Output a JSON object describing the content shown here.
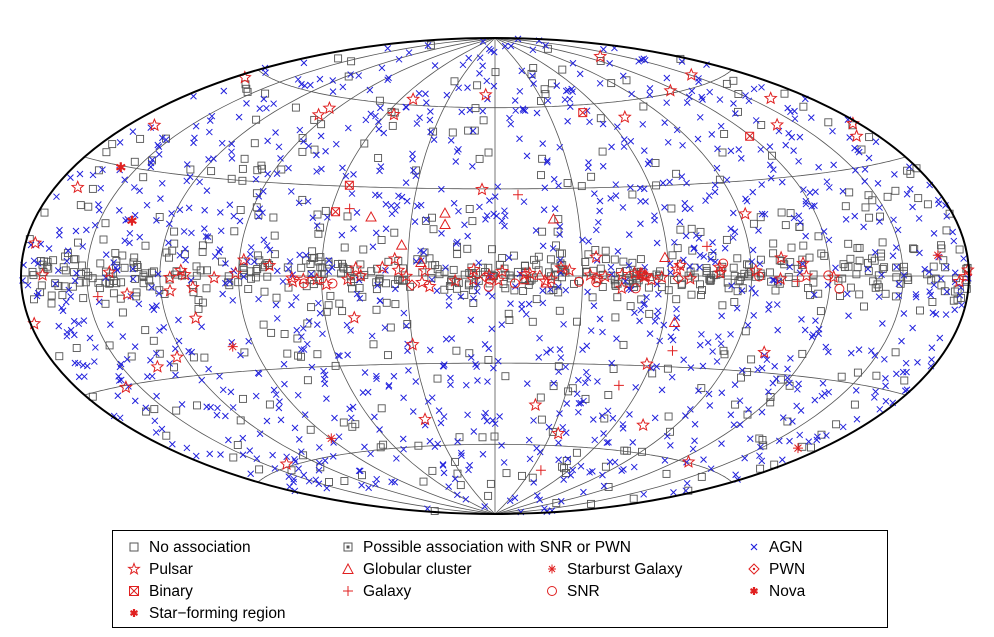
{
  "chart_data": {
    "type": "scatter",
    "projection": "Hammer-Aitoff all-sky",
    "title": "",
    "xlabel": "",
    "ylabel": "",
    "grid": true,
    "grid_spacing_deg": {
      "lon": 30,
      "lat": 30
    },
    "legend_placement": "bottom",
    "series": [
      {
        "name": "No association",
        "marker": "square",
        "color": "#555555",
        "approx_count": 700
      },
      {
        "name": "Possible association with SNR or PWN",
        "marker": "dotted-square",
        "color": "#555555",
        "approx_count": 60
      },
      {
        "name": "AGN",
        "marker": "x",
        "color": "#2222dd",
        "approx_count": 1100
      },
      {
        "name": "Pulsar",
        "marker": "star",
        "color": "#e02020",
        "approx_count": 100
      },
      {
        "name": "Globular cluster",
        "marker": "triangle",
        "color": "#e02020",
        "approx_count": 11
      },
      {
        "name": "Starburst Galaxy",
        "marker": "asterisk",
        "color": "#e02020",
        "approx_count": 4
      },
      {
        "name": "PWN",
        "marker": "diamond",
        "color": "#e02020",
        "approx_count": 3
      },
      {
        "name": "Binary",
        "marker": "boxed-x",
        "color": "#e02020",
        "approx_count": 4
      },
      {
        "name": "Galaxy",
        "marker": "plus",
        "color": "#e02020",
        "approx_count": 8
      },
      {
        "name": "SNR",
        "marker": "circle",
        "color": "#e02020",
        "approx_count": 12
      },
      {
        "name": "Nova",
        "marker": "filled-asterisk",
        "color": "#e02020",
        "approx_count": 1
      },
      {
        "name": "Star−forming region",
        "marker": "filled-asterisk",
        "color": "#e02020",
        "approx_count": 1
      }
    ]
  },
  "legend": {
    "items": [
      {
        "label": "No association",
        "marker": "square",
        "color": "#555555"
      },
      {
        "label": "Possible association with SNR or PWN",
        "marker": "dotted-square",
        "color": "#555555"
      },
      {
        "label": "AGN",
        "marker": "x",
        "color": "#2222dd"
      },
      {
        "label": "Pulsar",
        "marker": "star",
        "color": "#e02020"
      },
      {
        "label": "Globular cluster",
        "marker": "triangle",
        "color": "#e02020"
      },
      {
        "label": "Starburst Galaxy",
        "marker": "asterisk",
        "color": "#e02020"
      },
      {
        "label": "PWN",
        "marker": "diamond",
        "color": "#e02020"
      },
      {
        "label": "Binary",
        "marker": "boxed-x",
        "color": "#e02020"
      },
      {
        "label": "Galaxy",
        "marker": "plus",
        "color": "#e02020"
      },
      {
        "label": "SNR",
        "marker": "circle",
        "color": "#e02020"
      },
      {
        "label": "Nova",
        "marker": "filled-asterisk",
        "color": "#e02020"
      },
      {
        "label": "Star−forming region",
        "marker": "filled-asterisk",
        "color": "#e02020"
      }
    ]
  },
  "colors": {
    "grid": "#555555",
    "outline": "#000000",
    "agn": "#2222dd",
    "unassociated": "#555555",
    "galactic_source": "#e02020"
  }
}
